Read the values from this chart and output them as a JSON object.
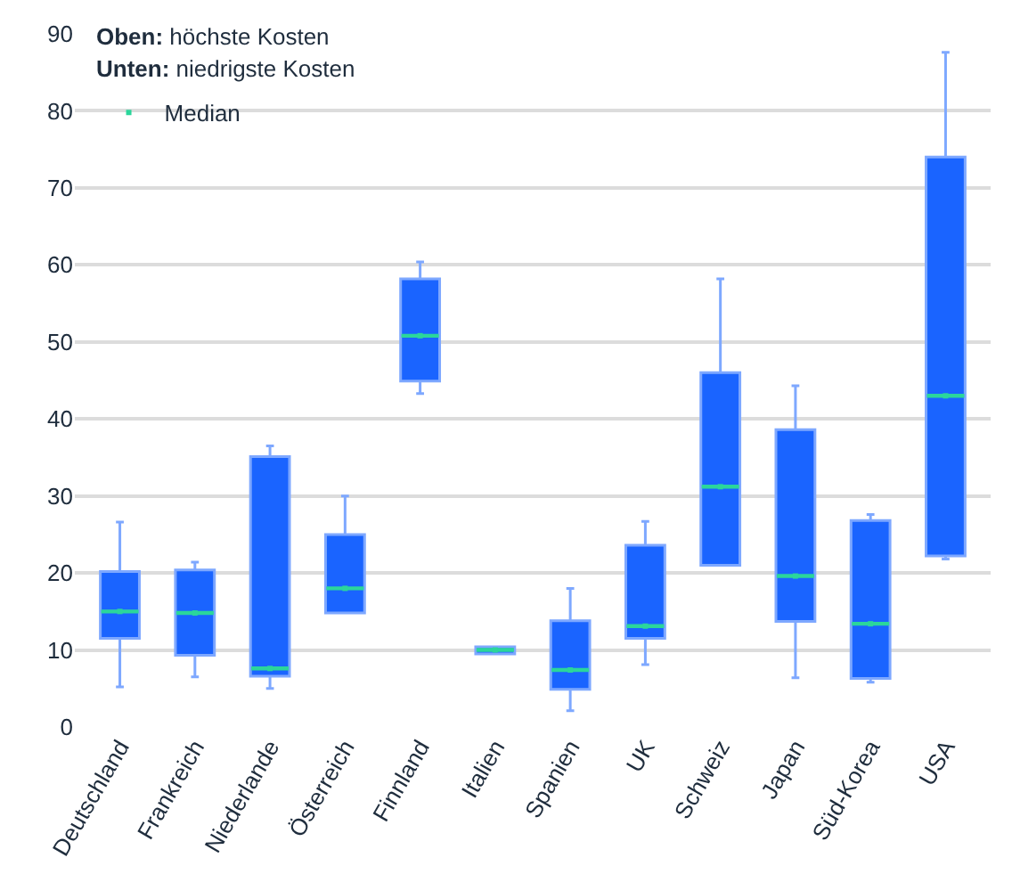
{
  "chart_data": {
    "type": "box",
    "categories": [
      "Deutschland",
      "Frankreich",
      "Niederlande",
      "Österreich",
      "Finnland",
      "Italien",
      "Spanien",
      "UK",
      "Schweiz",
      "Japan",
      "Süd-Korea",
      "USA"
    ],
    "series": [
      {
        "color": "#1a64ff",
        "boxes": [
          {
            "low": 5.2,
            "q1": 11.5,
            "median": 15,
            "q3": 20.2,
            "high": 26.6
          },
          {
            "low": 6.5,
            "q1": 9.3,
            "median": 14.8,
            "q3": 20.4,
            "high": 21.4
          },
          {
            "low": 5,
            "q1": 6.6,
            "median": 7.6,
            "q3": 35.1,
            "high": 36.5
          },
          {
            "low": 14.8,
            "q1": 14.8,
            "median": 18,
            "q3": 25,
            "high": 30
          },
          {
            "low": 43.3,
            "q1": 44.9,
            "median": 50.8,
            "q3": 58.2,
            "high": 60.4
          },
          {
            "low": 9.5,
            "q1": 9.5,
            "median": 10,
            "q3": 10.4,
            "high": 10.4
          },
          {
            "low": 2.1,
            "q1": 4.9,
            "median": 7.4,
            "q3": 13.8,
            "high": 18
          },
          {
            "low": 8.1,
            "q1": 11.5,
            "median": 13.1,
            "q3": 23.6,
            "high": 26.7
          },
          {
            "low": 21,
            "q1": 21,
            "median": 31.2,
            "q3": 46,
            "high": 58.2
          },
          {
            "low": 6.4,
            "q1": 13.7,
            "median": 19.6,
            "q3": 38.6,
            "high": 44.3
          },
          {
            "low": 5.8,
            "q1": 6.3,
            "median": 13.4,
            "q3": 26.8,
            "high": 27.6
          },
          {
            "low": 21.8,
            "q1": 22.2,
            "median": 43,
            "q3": 74,
            "high": 87.6
          }
        ]
      },
      {
        "name": "Median",
        "type": "scatter",
        "color": "#2bd69b",
        "values": [
          15,
          14.8,
          7.6,
          18,
          50.8,
          10,
          7.4,
          13.1,
          31.2,
          19.6,
          13.4,
          43
        ]
      }
    ],
    "ylim": [
      0,
      90
    ],
    "yticks": [
      0,
      10,
      20,
      30,
      40,
      50,
      60,
      70,
      80,
      90
    ],
    "grid": "y",
    "legend": "top left",
    "annotations": [
      "Oben: höchste Kosten",
      "Unten: niedrigste Kosten"
    ]
  }
}
